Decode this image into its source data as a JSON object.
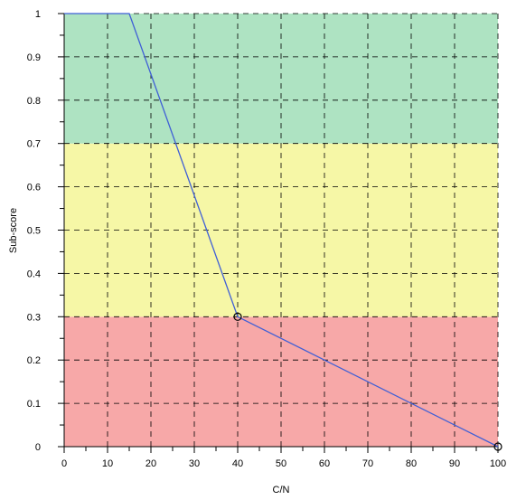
{
  "chart_data": {
    "type": "line",
    "title": "",
    "xlabel": "C/N",
    "ylabel": "Sub-score",
    "xlim": [
      0,
      100
    ],
    "ylim": [
      0,
      1
    ],
    "grid": true,
    "x_ticks": [
      "0",
      "10",
      "20",
      "30",
      "40",
      "50",
      "60",
      "70",
      "80",
      "90",
      "100"
    ],
    "y_ticks": [
      "0",
      "0.1",
      "0.2",
      "0.3",
      "0.4",
      "0.5",
      "0.6",
      "0.7",
      "0.8",
      "0.9",
      "1"
    ],
    "bands": [
      {
        "from": 0,
        "to": 0.3,
        "color": "#f7a8a8"
      },
      {
        "from": 0.3,
        "to": 0.7,
        "color": "#f6f7a6"
      },
      {
        "from": 0.7,
        "to": 1.0,
        "color": "#aee3c2"
      }
    ],
    "series": [
      {
        "color": "#3f5fd6",
        "x": [
          0,
          15,
          40,
          100
        ],
        "y": [
          1,
          1,
          0.3,
          0
        ],
        "markers": [
          {
            "x": 40,
            "y": 0.3
          },
          {
            "x": 100,
            "y": 0
          }
        ]
      }
    ]
  }
}
